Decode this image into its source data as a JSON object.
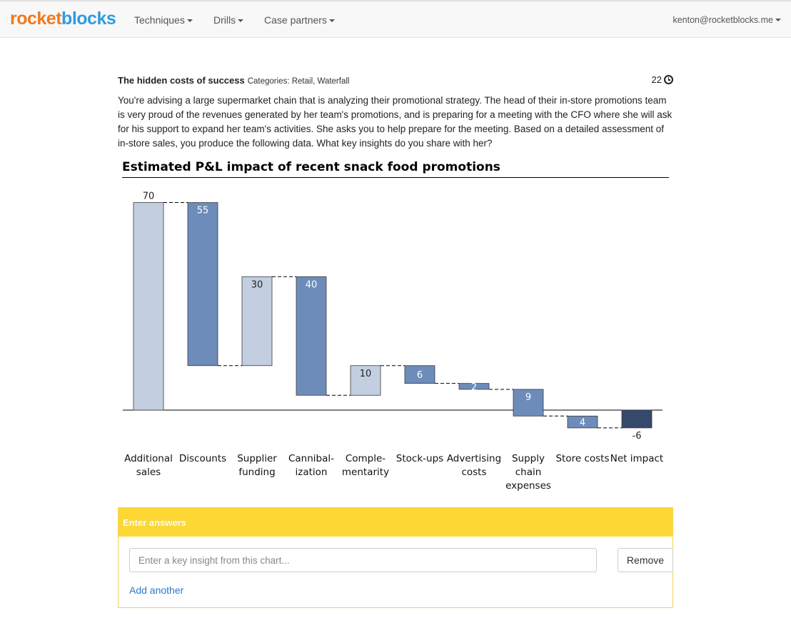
{
  "navbar": {
    "brand_part1": "rocket",
    "brand_part2": "blocks",
    "items": [
      {
        "label": "Techniques"
      },
      {
        "label": "Drills"
      },
      {
        "label": "Case partners"
      }
    ],
    "user": "kenton@rocketblocks.me"
  },
  "case": {
    "title": "The hidden costs of success",
    "categories": "Categories: Retail, Waterfall",
    "timer": "22",
    "prompt": "You're advising a large supermarket chain that is analyzing their promotional strategy. The head of their in-store promotions team is very proud of the revenues generated by her team's promotions, and is preparing for a meeting with the CFO where she will ask for his support to expand her team's activities. She asks you to help prepare for the meeting. Based on a detailed assessment of in-store sales, you produce the following data. What key insights do you share with her?"
  },
  "chart_data": {
    "type": "bar",
    "subtype": "waterfall",
    "title": "Estimated P&L impact of recent snack food promotions",
    "categories": [
      "Additional sales",
      "Discounts",
      "Supplier funding",
      "Cannibal-ization",
      "Comple-mentarity",
      "Stock-ups",
      "Advertising costs",
      "Supply chain expenses",
      "Store costs",
      "Net impact"
    ],
    "category_lines": [
      [
        "Additional",
        "sales"
      ],
      [
        "Discounts"
      ],
      [
        "Supplier",
        "funding"
      ],
      [
        "Cannibal-",
        "ization"
      ],
      [
        "Comple-",
        "mentarity"
      ],
      [
        "Stock-ups"
      ],
      [
        "Advertising",
        "costs"
      ],
      [
        "Supply",
        "chain",
        "expenses"
      ],
      [
        "Store costs"
      ],
      [
        "Net impact"
      ]
    ],
    "values": [
      70,
      -55,
      30,
      -40,
      10,
      -6,
      -2,
      -9,
      -4,
      -6
    ],
    "value_labels": [
      "70",
      "55",
      "30",
      "40",
      "10",
      "6",
      "2",
      "9",
      "4",
      "-6"
    ],
    "kinds": [
      "increase",
      "decrease",
      "increase",
      "decrease",
      "increase",
      "decrease",
      "decrease",
      "decrease",
      "decrease",
      "total"
    ],
    "colors": {
      "increase": "#c3cfe0",
      "decrease": "#6e8cba",
      "total": "#34496b"
    },
    "grid": false
  },
  "answers": {
    "header": "Enter answers",
    "placeholder": "Enter a key insight from this chart...",
    "remove_label": "Remove",
    "add_label": "Add another"
  }
}
